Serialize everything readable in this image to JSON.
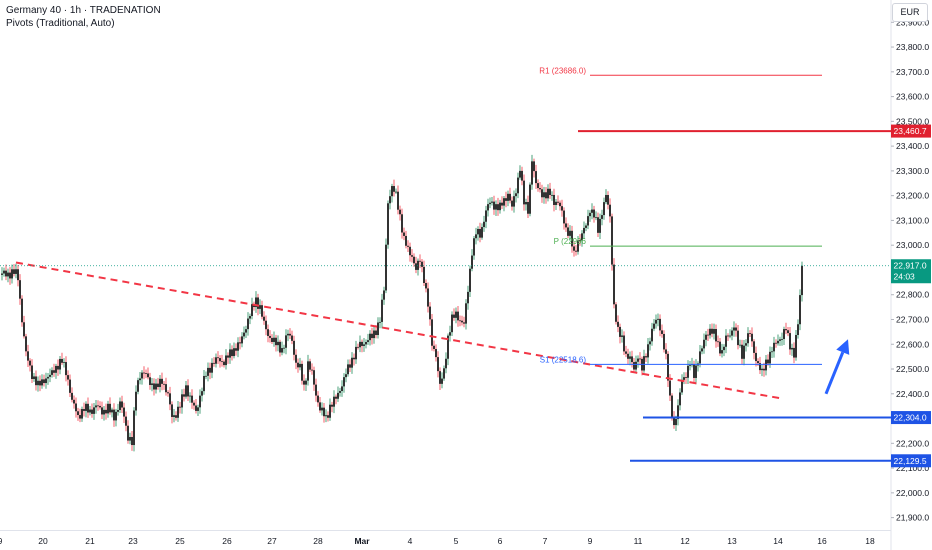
{
  "header": {
    "title": "Germany 40 · 1h · TRADENATION",
    "indicator": "Pivots (Traditional, Auto)",
    "currency": "EUR"
  },
  "chart_data": {
    "type": "candlestick",
    "ylim": [
      21850,
      23990
    ],
    "y_ticks": [
      {
        "value": 21900,
        "label": "21,900.0"
      },
      {
        "value": 22000,
        "label": "22,000.0"
      },
      {
        "value": 22100,
        "label": "22,100.0"
      },
      {
        "value": 22200,
        "label": "22,200.0"
      },
      {
        "value": 22300,
        "label": "22,300.0"
      },
      {
        "value": 22400,
        "label": "22,400.0"
      },
      {
        "value": 22500,
        "label": "22,500.0"
      },
      {
        "value": 22600,
        "label": "22,600.0"
      },
      {
        "value": 22700,
        "label": "22,700.0"
      },
      {
        "value": 22800,
        "label": "22,800.0"
      },
      {
        "value": 22900,
        "label": "22,900.0"
      },
      {
        "value": 23000,
        "label": "23,000.0"
      },
      {
        "value": 23100,
        "label": "23,100.0"
      },
      {
        "value": 23200,
        "label": "23,200.0"
      },
      {
        "value": 23300,
        "label": "23,300.0"
      },
      {
        "value": 23400,
        "label": "23,400.0"
      },
      {
        "value": 23500,
        "label": "23,500.0"
      },
      {
        "value": 23600,
        "label": "23,600.0"
      },
      {
        "value": 23700,
        "label": "23,700.0"
      },
      {
        "value": 23800,
        "label": "23,800.0"
      },
      {
        "value": 23900,
        "label": "23,900.0"
      }
    ],
    "x_ticks": [
      {
        "label": "9",
        "t": 0
      },
      {
        "label": "20",
        "t": 43
      },
      {
        "label": "21",
        "t": 90
      },
      {
        "label": "23",
        "t": 133
      },
      {
        "label": "25",
        "t": 180
      },
      {
        "label": "26",
        "t": 227
      },
      {
        "label": "27",
        "t": 272
      },
      {
        "label": "28",
        "t": 318
      },
      {
        "label": "Mar",
        "t": 362
      },
      {
        "label": "4",
        "t": 410
      },
      {
        "label": "5",
        "t": 456
      },
      {
        "label": "6",
        "t": 500
      },
      {
        "label": "7",
        "t": 545
      },
      {
        "label": "9",
        "t": 590
      },
      {
        "label": "11",
        "t": 638
      },
      {
        "label": "12",
        "t": 685
      },
      {
        "label": "13",
        "t": 732
      },
      {
        "label": "14",
        "t": 778
      },
      {
        "label": "16",
        "t": 822
      },
      {
        "label": "18",
        "t": 870
      }
    ],
    "price_path": [
      [
        0,
        22880
      ],
      [
        15,
        22890
      ],
      [
        18,
        22870
      ],
      [
        22,
        22700
      ],
      [
        26,
        22560
      ],
      [
        32,
        22480
      ],
      [
        38,
        22430
      ],
      [
        44,
        22460
      ],
      [
        50,
        22470
      ],
      [
        56,
        22510
      ],
      [
        62,
        22530
      ],
      [
        67,
        22480
      ],
      [
        72,
        22370
      ],
      [
        78,
        22310
      ],
      [
        84,
        22340
      ],
      [
        90,
        22330
      ],
      [
        96,
        22350
      ],
      [
        102,
        22330
      ],
      [
        108,
        22340
      ],
      [
        114,
        22310
      ],
      [
        120,
        22360
      ],
      [
        124,
        22310
      ],
      [
        128,
        22230
      ],
      [
        132,
        22200
      ],
      [
        136,
        22420
      ],
      [
        140,
        22480
      ],
      [
        145,
        22480
      ],
      [
        150,
        22450
      ],
      [
        156,
        22420
      ],
      [
        162,
        22460
      ],
      [
        168,
        22390
      ],
      [
        172,
        22310
      ],
      [
        176,
        22320
      ],
      [
        180,
        22350
      ],
      [
        186,
        22430
      ],
      [
        192,
        22360
      ],
      [
        196,
        22330
      ],
      [
        202,
        22420
      ],
      [
        206,
        22480
      ],
      [
        212,
        22520
      ],
      [
        218,
        22540
      ],
      [
        224,
        22530
      ],
      [
        230,
        22560
      ],
      [
        236,
        22590
      ],
      [
        240,
        22600
      ],
      [
        244,
        22650
      ],
      [
        248,
        22700
      ],
      [
        252,
        22740
      ],
      [
        256,
        22780
      ],
      [
        260,
        22750
      ],
      [
        264,
        22680
      ],
      [
        268,
        22640
      ],
      [
        272,
        22620
      ],
      [
        276,
        22600
      ],
      [
        282,
        22580
      ],
      [
        288,
        22640
      ],
      [
        292,
        22620
      ],
      [
        296,
        22520
      ],
      [
        300,
        22500
      ],
      [
        304,
        22430
      ],
      [
        308,
        22520
      ],
      [
        312,
        22480
      ],
      [
        316,
        22400
      ],
      [
        320,
        22340
      ],
      [
        326,
        22300
      ],
      [
        330,
        22350
      ],
      [
        336,
        22380
      ],
      [
        342,
        22440
      ],
      [
        348,
        22500
      ],
      [
        354,
        22560
      ],
      [
        358,
        22590
      ],
      [
        362,
        22600
      ],
      [
        368,
        22620
      ],
      [
        372,
        22630
      ],
      [
        376,
        22660
      ],
      [
        380,
        22700
      ],
      [
        384,
        22820
      ],
      [
        388,
        23180
      ],
      [
        392,
        23230
      ],
      [
        396,
        23200
      ],
      [
        400,
        23120
      ],
      [
        404,
        23020
      ],
      [
        408,
        22980
      ],
      [
        412,
        22960
      ],
      [
        416,
        22900
      ],
      [
        420,
        22940
      ],
      [
        424,
        22870
      ],
      [
        428,
        22760
      ],
      [
        432,
        22600
      ],
      [
        436,
        22560
      ],
      [
        440,
        22430
      ],
      [
        444,
        22490
      ],
      [
        448,
        22630
      ],
      [
        452,
        22700
      ],
      [
        456,
        22720
      ],
      [
        460,
        22700
      ],
      [
        464,
        22680
      ],
      [
        468,
        22820
      ],
      [
        472,
        22980
      ],
      [
        476,
        23050
      ],
      [
        480,
        23040
      ],
      [
        486,
        23140
      ],
      [
        490,
        23170
      ],
      [
        496,
        23160
      ],
      [
        500,
        23150
      ],
      [
        504,
        23180
      ],
      [
        508,
        23210
      ],
      [
        512,
        23150
      ],
      [
        516,
        23220
      ],
      [
        520,
        23320
      ],
      [
        524,
        23170
      ],
      [
        528,
        23140
      ],
      [
        532,
        23350
      ],
      [
        536,
        23240
      ],
      [
        540,
        23220
      ],
      [
        546,
        23200
      ],
      [
        550,
        23210
      ],
      [
        554,
        23180
      ],
      [
        558,
        23170
      ],
      [
        562,
        23130
      ],
      [
        566,
        23070
      ],
      [
        570,
        23040
      ],
      [
        574,
        22960
      ],
      [
        578,
        23020
      ],
      [
        582,
        23040
      ],
      [
        586,
        23080
      ],
      [
        590,
        23150
      ],
      [
        594,
        23120
      ],
      [
        598,
        23060
      ],
      [
        602,
        23140
      ],
      [
        606,
        23200
      ],
      [
        610,
        23110
      ],
      [
        614,
        22760
      ],
      [
        618,
        22650
      ],
      [
        622,
        22620
      ],
      [
        626,
        22560
      ],
      [
        630,
        22540
      ],
      [
        634,
        22500
      ],
      [
        638,
        22560
      ],
      [
        642,
        22500
      ],
      [
        646,
        22560
      ],
      [
        650,
        22630
      ],
      [
        654,
        22680
      ],
      [
        658,
        22700
      ],
      [
        662,
        22640
      ],
      [
        666,
        22540
      ],
      [
        670,
        22380
      ],
      [
        674,
        22270
      ],
      [
        678,
        22340
      ],
      [
        682,
        22460
      ],
      [
        686,
        22480
      ],
      [
        690,
        22520
      ],
      [
        694,
        22480
      ],
      [
        698,
        22540
      ],
      [
        702,
        22580
      ],
      [
        706,
        22640
      ],
      [
        710,
        22660
      ],
      [
        714,
        22640
      ],
      [
        718,
        22600
      ],
      [
        722,
        22570
      ],
      [
        726,
        22620
      ],
      [
        730,
        22640
      ],
      [
        734,
        22680
      ],
      [
        738,
        22600
      ],
      [
        742,
        22560
      ],
      [
        746,
        22620
      ],
      [
        750,
        22640
      ],
      [
        754,
        22570
      ],
      [
        758,
        22520
      ],
      [
        762,
        22480
      ],
      [
        766,
        22530
      ],
      [
        770,
        22560
      ],
      [
        774,
        22590
      ],
      [
        778,
        22620
      ],
      [
        782,
        22630
      ],
      [
        786,
        22660
      ],
      [
        790,
        22600
      ],
      [
        794,
        22560
      ],
      [
        798,
        22680
      ],
      [
        802,
        22917
      ]
    ],
    "series": [
      {
        "name": "R1",
        "label": "R1 (23686.0)",
        "value": 23686.0,
        "t_start": 590,
        "t_end": 822,
        "color": "#f23645"
      },
      {
        "name": "P",
        "label": "P (22996",
        "value": 22996,
        "t_start": 590,
        "t_end": 822,
        "color": "#4caf50"
      },
      {
        "name": "S1",
        "label": "S1 (22518.6)",
        "value": 22518.6,
        "t_start": 590,
        "t_end": 822,
        "color": "#2962ff"
      }
    ],
    "levels": [
      {
        "value": 23460.7,
        "label": "23,460.7",
        "t_start": 578,
        "color": "#e0202f"
      },
      {
        "value": 22304.0,
        "label": "22,304.0",
        "t_start": 643,
        "color": "#1e53e5"
      },
      {
        "value": 22129.5,
        "label": "22,129.5",
        "t_start": 630,
        "color": "#1e53e5"
      }
    ],
    "current_price": {
      "value": 22917.0,
      "label": "22,917.0",
      "countdown": "24:03",
      "color": "#089981"
    },
    "trendline": {
      "from": [
        16,
        22930
      ],
      "to": [
        783,
        22380
      ],
      "color": "#f23645"
    },
    "arrow": {
      "from": [
        826,
        22400
      ],
      "to": [
        848,
        22620
      ],
      "color": "#2962ff"
    }
  }
}
